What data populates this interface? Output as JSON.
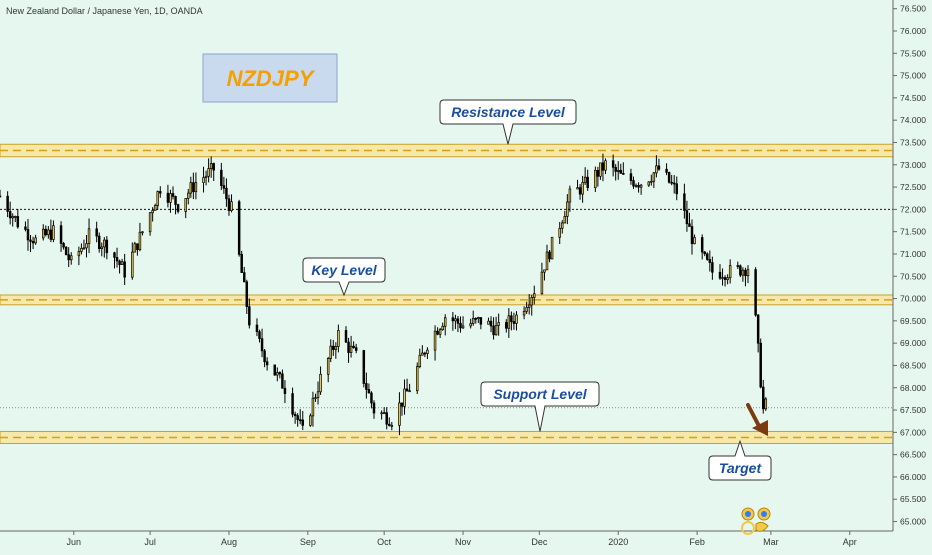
{
  "chart_data": {
    "type": "candlestick",
    "title": "New Zealand Dollar / Japanese Yen, 1D, OANDA",
    "badge": "NZDJPY",
    "ylim": [
      64.9,
      76.65
    ],
    "y_ticks": [
      "76.500",
      "76.000",
      "75.500",
      "75.000",
      "74.500",
      "74.000",
      "73.500",
      "73.000",
      "72.500",
      "72.000",
      "71.500",
      "71.000",
      "70.500",
      "70.000",
      "69.500",
      "69.000",
      "68.500",
      "68.000",
      "67.500",
      "67.000",
      "66.500",
      "66.000",
      "65.500",
      "65.000"
    ],
    "x_ticks": [
      "Jun",
      "Jul",
      "Aug",
      "Sep",
      "Oct",
      "Nov",
      "Dec",
      "2020",
      "Feb",
      "Mar",
      "Apr"
    ],
    "x_tick_dates": [
      "2019-06-01",
      "2019-07-01",
      "2019-08-01",
      "2019-09-01",
      "2019-10-01",
      "2019-11-01",
      "2019-12-01",
      "2020-01-01",
      "2020-02-01",
      "2020-03-01",
      "2020-04-01"
    ],
    "x_range": [
      "2019-05-03",
      "2020-04-18"
    ],
    "levels": [
      {
        "name": "Resistance Level",
        "price": 73.33,
        "low": 73.18,
        "high": 73.46
      },
      {
        "name": "Key Level",
        "price": 69.98,
        "low": 69.86,
        "high": 70.08
      },
      {
        "name": "Support Level",
        "price": 66.88,
        "low": 66.75,
        "high": 67.02
      }
    ],
    "dotted_line": 72.0,
    "current_price_line": 67.55,
    "target_label": "Target",
    "anchors": [
      [
        "2019-05-03",
        72.3
      ],
      [
        "2019-05-10",
        71.7
      ],
      [
        "2019-05-17",
        71.3
      ],
      [
        "2019-05-24",
        71.5
      ],
      [
        "2019-05-31",
        70.8
      ],
      [
        "2019-06-07",
        71.4
      ],
      [
        "2019-06-14",
        71.2
      ],
      [
        "2019-06-21",
        70.6
      ],
      [
        "2019-06-28",
        71.5
      ],
      [
        "2019-07-05",
        72.5
      ],
      [
        "2019-07-12",
        72.1
      ],
      [
        "2019-07-19",
        72.6
      ],
      [
        "2019-07-26",
        72.9
      ],
      [
        "2019-08-02",
        72.0
      ],
      [
        "2019-08-09",
        69.5
      ],
      [
        "2019-08-16",
        68.6
      ],
      [
        "2019-08-23",
        68.0
      ],
      [
        "2019-08-30",
        67.0
      ],
      [
        "2019-09-06",
        68.2
      ],
      [
        "2019-09-13",
        69.2
      ],
      [
        "2019-09-20",
        68.7
      ],
      [
        "2019-09-27",
        67.5
      ],
      [
        "2019-10-04",
        67.3
      ],
      [
        "2019-10-11",
        68.0
      ],
      [
        "2019-10-18",
        69.0
      ],
      [
        "2019-10-25",
        69.6
      ],
      [
        "2019-11-01",
        69.4
      ],
      [
        "2019-11-08",
        69.5
      ],
      [
        "2019-11-15",
        69.3
      ],
      [
        "2019-11-22",
        69.6
      ],
      [
        "2019-11-29",
        70.2
      ],
      [
        "2019-12-06",
        71.2
      ],
      [
        "2019-12-13",
        72.3
      ],
      [
        "2019-12-20",
        72.6
      ],
      [
        "2019-12-27",
        73.0
      ],
      [
        "2020-01-03",
        72.7
      ],
      [
        "2020-01-10",
        72.6
      ],
      [
        "2020-01-17",
        72.9
      ],
      [
        "2020-01-24",
        72.4
      ],
      [
        "2020-01-31",
        71.2
      ],
      [
        "2020-02-07",
        70.6
      ],
      [
        "2020-02-14",
        70.6
      ],
      [
        "2020-02-21",
        70.7
      ],
      [
        "2020-02-24",
        69.5
      ],
      [
        "2020-02-27",
        67.5
      ],
      [
        "2020-02-28",
        67.6
      ]
    ]
  }
}
